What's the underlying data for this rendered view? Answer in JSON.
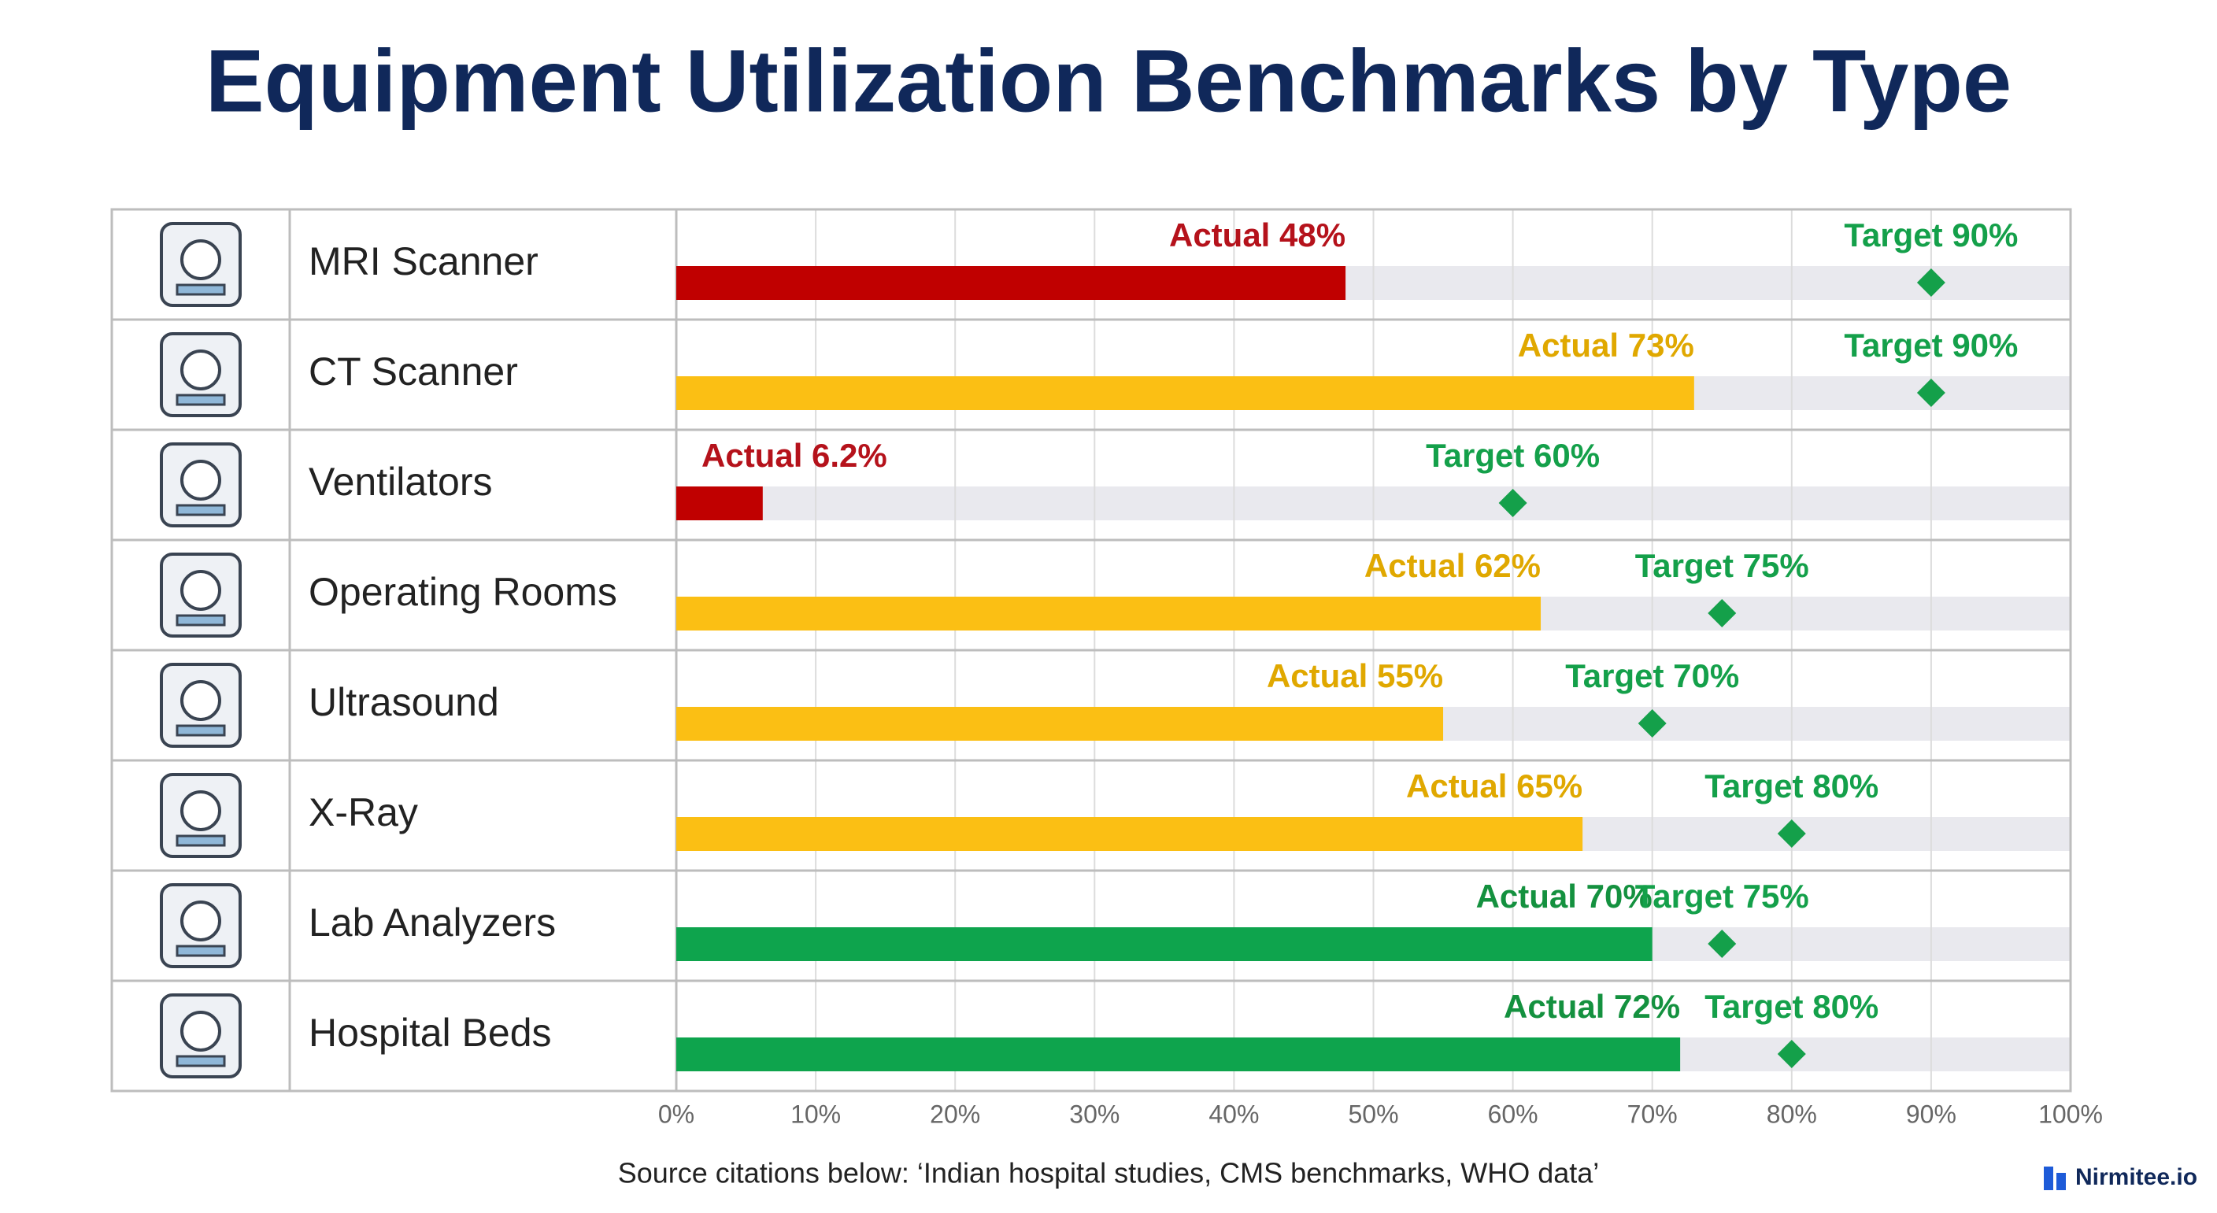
{
  "chart_data": {
    "type": "bullet",
    "title": "Equipment Utilization Benchmarks by Type",
    "categories": [
      "MRI Scanner",
      "CT Scanner",
      "Ventilators",
      "Operating Rooms",
      "Ultrasound",
      "X-Ray",
      "Lab Analyzers",
      "Hospital Beds"
    ],
    "series": [
      {
        "name": "Actual",
        "colors": [
          "#c00000",
          "#fbbf14",
          "#c00000",
          "#fbbf14",
          "#fbbf14",
          "#fbbf14",
          "#0ea44d",
          "#0ea44d"
        ],
        "values": [
          48,
          73,
          6.2,
          62,
          55,
          65,
          70,
          72
        ],
        "value_labels": [
          "Actual 48%",
          "Actual 73%",
          "Actual 6.2%",
          "Actual 62%",
          "Actual 55%",
          "Actual 65%",
          "Actual 70%",
          "Actual 72%"
        ]
      },
      {
        "name": "Target",
        "color": "#14a04a",
        "values": [
          90,
          90,
          60,
          75,
          70,
          80,
          75,
          80
        ],
        "value_labels": [
          "Target 90%",
          "Target 90%",
          "Target 60%",
          "Target 75%",
          "Target 70%",
          "Target 80%",
          "Target 75%",
          "Target 80%"
        ]
      }
    ],
    "label_colors": [
      "#b5121b",
      "#e0a800",
      "#b5121b",
      "#e0a800",
      "#e0a800",
      "#e0a800",
      "#14913f",
      "#14913f"
    ],
    "xlim": [
      0,
      100
    ],
    "xticks": [
      {
        "value": 0,
        "label": "0%"
      },
      {
        "value": 10,
        "label": "10%"
      },
      {
        "value": 20,
        "label": "20%"
      },
      {
        "value": 30,
        "label": "30%"
      },
      {
        "value": 40,
        "label": "40%"
      },
      {
        "value": 50,
        "label": "50%"
      },
      {
        "value": 60,
        "label": "60%"
      },
      {
        "value": 70,
        "label": "70%"
      },
      {
        "value": 80,
        "label": "80%"
      },
      {
        "value": 90,
        "label": "90%"
      },
      {
        "value": 100,
        "label": "100%"
      }
    ],
    "grid": true,
    "source": "Source citations below: ‘Indian hospital studies, CMS benchmarks, WHO data’",
    "brand": "Nirmitee.io"
  }
}
